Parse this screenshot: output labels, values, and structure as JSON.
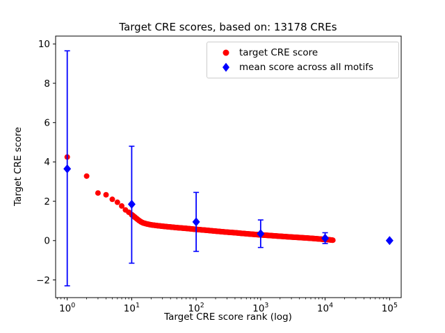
{
  "chart_data": {
    "type": "scatter",
    "title": "Target CRE scores, based on: 13178 CREs",
    "xlabel": "Target CRE score rank (log)",
    "ylabel": "Target CRE score",
    "n_cres": 13178,
    "x_scale": "log",
    "xlim_log10": [
      -0.18,
      5.18
    ],
    "ylim": [
      -2.9,
      10.4
    ],
    "x_tick_exponents": [
      0,
      1,
      2,
      3,
      4,
      5
    ],
    "y_ticks": [
      -2,
      0,
      2,
      4,
      6,
      8,
      10
    ],
    "grid": false,
    "legend_position": "upper right",
    "series": [
      {
        "name": "target CRE score",
        "marker": "circle",
        "color": "#ff0000",
        "points": [
          [
            1,
            4.25
          ],
          [
            2,
            3.28
          ],
          [
            3,
            2.42
          ],
          [
            4,
            2.33
          ],
          [
            5,
            2.1
          ],
          [
            6,
            1.95
          ],
          [
            7,
            1.76
          ],
          [
            8,
            1.56
          ],
          [
            9,
            1.44
          ],
          [
            10,
            1.32
          ],
          [
            11,
            1.21
          ],
          [
            12,
            1.11
          ],
          [
            13,
            1.02
          ],
          [
            14,
            0.95
          ],
          [
            15,
            0.9
          ],
          [
            17,
            0.85
          ],
          [
            20,
            0.8
          ],
          [
            25,
            0.76
          ],
          [
            30,
            0.73
          ],
          [
            40,
            0.69
          ],
          [
            50,
            0.66
          ],
          [
            70,
            0.62
          ],
          [
            100,
            0.57
          ],
          [
            150,
            0.52
          ],
          [
            200,
            0.48
          ],
          [
            300,
            0.43
          ],
          [
            400,
            0.4
          ],
          [
            500,
            0.37
          ],
          [
            700,
            0.33
          ],
          [
            1000,
            0.29
          ],
          [
            1500,
            0.25
          ],
          [
            2000,
            0.22
          ],
          [
            3000,
            0.18
          ],
          [
            4000,
            0.155
          ],
          [
            5000,
            0.135
          ],
          [
            7000,
            0.1
          ],
          [
            9000,
            0.07
          ],
          [
            11000,
            0.05
          ],
          [
            13178,
            0.02
          ]
        ],
        "dense_from_rank": 10,
        "dense_to_rank": 13178
      },
      {
        "name": "mean score across all motifs",
        "marker": "diamond",
        "color": "#0000ff",
        "x": [
          1,
          10,
          100,
          1000,
          10000,
          100000
        ],
        "mean": [
          3.65,
          1.85,
          0.95,
          0.35,
          0.12,
          0.0
        ],
        "err_low": [
          -2.3,
          -1.15,
          -0.55,
          -0.35,
          -0.15,
          0.0
        ],
        "err_high": [
          9.65,
          4.8,
          2.45,
          1.05,
          0.4,
          0.0
        ]
      }
    ]
  }
}
